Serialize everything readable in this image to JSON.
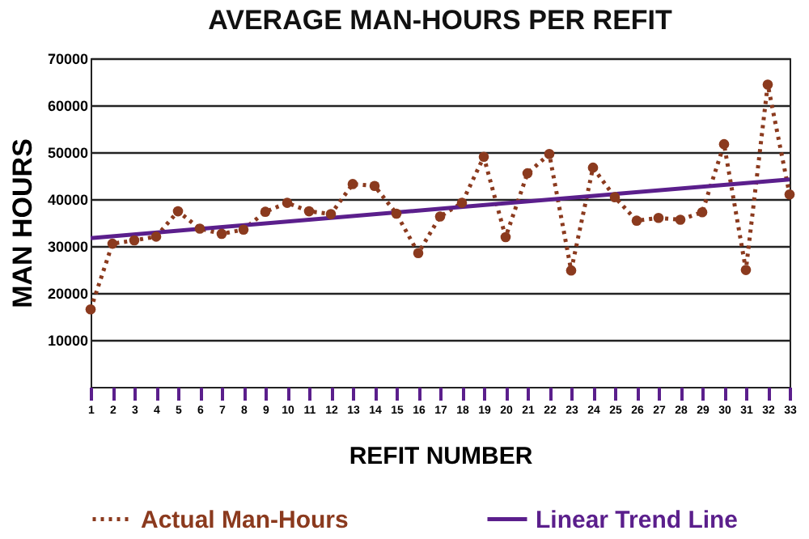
{
  "chart_data": {
    "type": "line",
    "title": "AVERAGE MAN-HOURS PER REFIT",
    "xlabel": "REFIT NUMBER",
    "ylabel": "MAN HOURS",
    "x": [
      1,
      2,
      3,
      4,
      5,
      6,
      7,
      8,
      9,
      10,
      11,
      12,
      13,
      14,
      15,
      16,
      17,
      18,
      19,
      20,
      21,
      22,
      23,
      24,
      25,
      26,
      27,
      28,
      29,
      30,
      31,
      32,
      33
    ],
    "xlim": [
      1,
      33
    ],
    "xticks": [
      1,
      2,
      3,
      4,
      5,
      6,
      7,
      8,
      9,
      10,
      11,
      12,
      13,
      14,
      15,
      16,
      17,
      18,
      19,
      20,
      21,
      22,
      23,
      24,
      25,
      26,
      27,
      28,
      29,
      30,
      31,
      32,
      33
    ],
    "ylim": [
      0,
      70000
    ],
    "yticks": [
      10000,
      20000,
      30000,
      40000,
      50000,
      60000,
      70000
    ],
    "grid": "y",
    "legend": "bottom",
    "series": [
      {
        "name": "Actual Man-Hours",
        "color": "#8b3a1e",
        "line_style": "dotted",
        "marker": "circle",
        "values": [
          16500,
          30500,
          31200,
          32000,
          37400,
          33700,
          32600,
          33500,
          37300,
          39200,
          37400,
          36800,
          43200,
          42800,
          36900,
          28500,
          36300,
          39200,
          49000,
          31900,
          45500,
          49600,
          24800,
          46700,
          40400,
          35400,
          36000,
          35600,
          37200,
          51700,
          24900,
          64400,
          41000
        ]
      },
      {
        "name": "Linear Trend Line",
        "type": "line",
        "color": "#5b1f8c",
        "line_style": "solid",
        "marker": "none",
        "x": [
          1,
          33
        ],
        "values": [
          31700,
          44200
        ]
      }
    ]
  }
}
